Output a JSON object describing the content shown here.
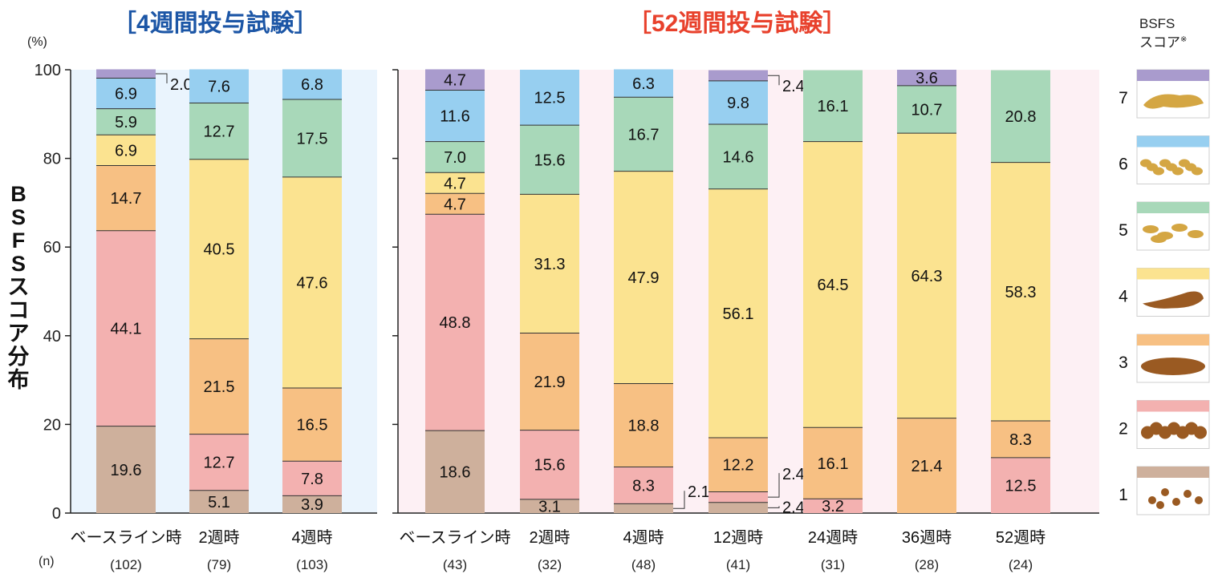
{
  "colors": {
    "score7": "#a99bcd",
    "score6": "#97cff0",
    "score5": "#a8d8b9",
    "score4": "#fbe390",
    "score3": "#f7c083",
    "score2": "#f3b1b0",
    "score1": "#ceb09c",
    "title4w": "#1c56a6",
    "title52w": "#e8412c",
    "bg4w": "#eaf4fd",
    "bg52w": "#fdf0f4"
  },
  "labels": {
    "title_4w": "［4週間投与試験］",
    "title_52w": "［52週間投与試験］",
    "unit": "(%)",
    "n_label": "(n)",
    "ylabel": "BSFSスコア分布",
    "legend_title_line1": "BSFS",
    "legend_title_line2": "スコア",
    "legend_title_mark": "※"
  },
  "chart_data": [
    {
      "type": "bar",
      "stacked": true,
      "title": "［4週間投与試験］",
      "ylabel": "BSFSスコア分布",
      "ylim": [
        0,
        100
      ],
      "yticks": [
        0,
        20,
        40,
        60,
        80,
        100
      ],
      "categories": [
        "ベースライン時",
        "2週時",
        "4週時"
      ],
      "n": [
        "(102)",
        "(79)",
        "(103)"
      ],
      "series": [
        {
          "name": "1",
          "values": [
            19.6,
            5.1,
            3.9
          ]
        },
        {
          "name": "2",
          "values": [
            44.1,
            12.7,
            7.8
          ]
        },
        {
          "name": "3",
          "values": [
            14.7,
            21.5,
            16.5
          ]
        },
        {
          "name": "4",
          "values": [
            6.9,
            40.5,
            47.6
          ]
        },
        {
          "name": "5",
          "values": [
            5.9,
            12.7,
            17.5
          ]
        },
        {
          "name": "6",
          "values": [
            6.9,
            7.6,
            6.8
          ]
        },
        {
          "name": "7",
          "values": [
            2.0,
            0,
            0
          ]
        }
      ],
      "annotations": [
        {
          "category": "ベースライン時",
          "series": "7",
          "text": "2.0"
        }
      ]
    },
    {
      "type": "bar",
      "stacked": true,
      "title": "［52週間投与試験］",
      "ylabel": "BSFSスコア分布",
      "ylim": [
        0,
        100
      ],
      "yticks": [
        0,
        20,
        40,
        60,
        80,
        100
      ],
      "categories": [
        "ベースライン時",
        "2週時",
        "4週時",
        "12週時",
        "24週時",
        "36週時",
        "52週時"
      ],
      "n": [
        "(43)",
        "(32)",
        "(48)",
        "(41)",
        "(31)",
        "(28)",
        "(24)"
      ],
      "series": [
        {
          "name": "1",
          "values": [
            18.6,
            3.1,
            2.1,
            2.4,
            0,
            0,
            0
          ]
        },
        {
          "name": "2",
          "values": [
            48.8,
            15.6,
            8.3,
            2.4,
            3.2,
            0,
            12.5
          ]
        },
        {
          "name": "3",
          "values": [
            4.7,
            21.9,
            18.8,
            12.2,
            16.1,
            21.4,
            8.3
          ]
        },
        {
          "name": "4",
          "values": [
            4.7,
            31.3,
            47.9,
            56.1,
            64.5,
            64.3,
            58.3
          ]
        },
        {
          "name": "5",
          "values": [
            7.0,
            15.6,
            16.7,
            14.6,
            16.1,
            10.7,
            20.8
          ]
        },
        {
          "name": "6",
          "values": [
            11.6,
            12.5,
            6.3,
            9.8,
            0,
            0,
            0
          ]
        },
        {
          "name": "7",
          "values": [
            4.7,
            0,
            0,
            2.4,
            0,
            3.6,
            0
          ]
        }
      ],
      "annotations": [
        {
          "category": "4週時",
          "series": "1",
          "text": "2.1"
        },
        {
          "category": "12週時",
          "series": "1",
          "text": "2.4"
        },
        {
          "category": "12週時",
          "series": "2",
          "text": "2.4"
        },
        {
          "category": "12週時",
          "series": "7",
          "text": "2.4"
        }
      ]
    }
  ],
  "legend": [
    {
      "score": "7",
      "icon": "watery-stool-icon"
    },
    {
      "score": "6",
      "icon": "mushy-stool-icon"
    },
    {
      "score": "5",
      "icon": "soft-blobs-stool-icon"
    },
    {
      "score": "4",
      "icon": "smooth-sausage-stool-icon"
    },
    {
      "score": "3",
      "icon": "cracked-sausage-stool-icon"
    },
    {
      "score": "2",
      "icon": "lumpy-sausage-stool-icon"
    },
    {
      "score": "1",
      "icon": "hard-lumps-stool-icon"
    }
  ]
}
